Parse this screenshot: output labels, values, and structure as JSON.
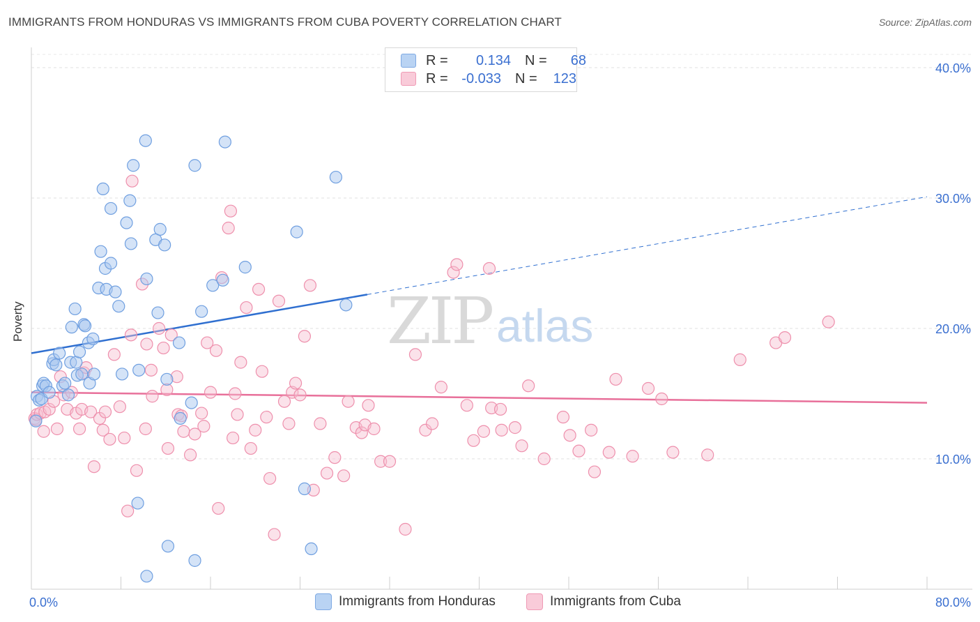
{
  "header": {
    "title": "IMMIGRANTS FROM HONDURAS VS IMMIGRANTS FROM CUBA POVERTY CORRELATION CHART",
    "source": "Source: ZipAtlas.com"
  },
  "legend_top": {
    "row1": {
      "r_label": "R =",
      "r_value": "0.134",
      "n_label": "N =",
      "n_value": "68"
    },
    "row2": {
      "r_label": "R =",
      "r_value": "-0.033",
      "n_label": "N =",
      "n_value": "123"
    }
  },
  "legend_bottom": {
    "item1": "Immigrants from Honduras",
    "item2": "Immigrants from Cuba"
  },
  "colors": {
    "honduras_fill": "#a9c8f0",
    "honduras_stroke": "#6f9fe0",
    "honduras_line": "#2f6fd0",
    "cuba_fill": "#f7bfd0",
    "cuba_stroke": "#ee8fac",
    "cuba_line": "#e8709a",
    "tick_label": "#3a6fd0"
  },
  "chart_data": {
    "type": "scatter",
    "title": "IMMIGRANTS FROM HONDURAS VS IMMIGRANTS FROM CUBA POVERTY CORRELATION CHART",
    "xlabel": "",
    "ylabel": "Poverty",
    "xlim": [
      0,
      80
    ],
    "ylim": [
      0,
      40
    ],
    "x_tick_labels": [
      "0.0%",
      "80.0%"
    ],
    "y_ticks": [
      10,
      20,
      30,
      40
    ],
    "y_tick_labels": [
      "10.0%",
      "20.0%",
      "30.0%",
      "40.0%"
    ],
    "grid": true,
    "legend_position": "top-center",
    "watermark": "ZIPatlas",
    "series": [
      {
        "name": "Immigrants from Honduras",
        "R": 0.134,
        "N": 68,
        "trend": {
          "x0": 0,
          "y0": 18.1,
          "x1": 30,
          "y1": 22.6,
          "dashed_to_x": 80,
          "dashed_to_y": 30.1
        },
        "points": [
          [
            0.5,
            14.8
          ],
          [
            0.7,
            14.5
          ],
          [
            0.9,
            14.6
          ],
          [
            1.0,
            15.6
          ],
          [
            1.1,
            15.8
          ],
          [
            1.3,
            15.6
          ],
          [
            1.6,
            15.1
          ],
          [
            1.9,
            17.3
          ],
          [
            2.0,
            17.6
          ],
          [
            2.5,
            18.1
          ],
          [
            2.8,
            15.6
          ],
          [
            3.0,
            15.8
          ],
          [
            3.3,
            14.9
          ],
          [
            3.5,
            17.4
          ],
          [
            3.6,
            20.1
          ],
          [
            3.9,
            21.5
          ],
          [
            4.0,
            17.4
          ],
          [
            4.1,
            16.4
          ],
          [
            4.3,
            18.2
          ],
          [
            4.7,
            20.3
          ],
          [
            4.8,
            20.2
          ],
          [
            5.1,
            18.9
          ],
          [
            5.2,
            15.8
          ],
          [
            5.5,
            19.2
          ],
          [
            5.6,
            16.5
          ],
          [
            6.0,
            23.1
          ],
          [
            6.2,
            25.9
          ],
          [
            6.4,
            30.7
          ],
          [
            6.6,
            24.6
          ],
          [
            6.7,
            23.0
          ],
          [
            7.1,
            25.0
          ],
          [
            7.5,
            22.8
          ],
          [
            7.8,
            21.7
          ],
          [
            8.1,
            16.5
          ],
          [
            8.5,
            28.1
          ],
          [
            8.8,
            29.8
          ],
          [
            8.9,
            26.5
          ],
          [
            9.1,
            32.5
          ],
          [
            9.6,
            16.8
          ],
          [
            10.2,
            34.4
          ],
          [
            10.3,
            23.8
          ],
          [
            11.1,
            26.8
          ],
          [
            11.3,
            21.2
          ],
          [
            11.5,
            27.6
          ],
          [
            11.9,
            26.4
          ],
          [
            12.1,
            16.1
          ],
          [
            13.2,
            18.9
          ],
          [
            13.3,
            13.1
          ],
          [
            14.3,
            14.3
          ],
          [
            14.6,
            32.5
          ],
          [
            15.2,
            21.3
          ],
          [
            16.2,
            23.3
          ],
          [
            17.1,
            23.7
          ],
          [
            17.3,
            34.3
          ],
          [
            19.1,
            24.7
          ],
          [
            23.7,
            27.4
          ],
          [
            24.4,
            7.7
          ],
          [
            25.0,
            3.1
          ],
          [
            27.2,
            31.6
          ],
          [
            28.1,
            21.8
          ],
          [
            10.3,
            1.0
          ],
          [
            12.2,
            3.3
          ],
          [
            14.6,
            2.2
          ],
          [
            9.5,
            6.6
          ],
          [
            7.1,
            29.2
          ],
          [
            2.2,
            17.2
          ],
          [
            0.4,
            12.9
          ],
          [
            4.5,
            16.5
          ]
        ]
      },
      {
        "name": "Immigrants from Cuba",
        "R": -0.033,
        "N": 123,
        "trend": {
          "x0": 0,
          "y0": 15.1,
          "x1": 80,
          "y1": 14.3
        },
        "points": [
          [
            0.3,
            13.1
          ],
          [
            0.4,
            13.0
          ],
          [
            0.5,
            13.4
          ],
          [
            0.8,
            13.5
          ],
          [
            1.1,
            12.1
          ],
          [
            1.2,
            13.6
          ],
          [
            1.6,
            13.8
          ],
          [
            2.0,
            14.4
          ],
          [
            2.3,
            12.3
          ],
          [
            2.6,
            16.3
          ],
          [
            2.9,
            14.9
          ],
          [
            3.2,
            13.8
          ],
          [
            3.6,
            15.1
          ],
          [
            4.0,
            13.5
          ],
          [
            4.3,
            12.3
          ],
          [
            4.5,
            13.8
          ],
          [
            4.7,
            16.6
          ],
          [
            4.9,
            17.0
          ],
          [
            5.3,
            13.6
          ],
          [
            5.6,
            9.4
          ],
          [
            6.1,
            13.1
          ],
          [
            6.4,
            12.2
          ],
          [
            6.6,
            13.6
          ],
          [
            7.0,
            11.5
          ],
          [
            7.4,
            18.0
          ],
          [
            7.9,
            14.0
          ],
          [
            8.3,
            11.6
          ],
          [
            8.6,
            6.0
          ],
          [
            8.9,
            19.5
          ],
          [
            9.0,
            31.3
          ],
          [
            9.4,
            9.1
          ],
          [
            9.9,
            23.4
          ],
          [
            10.2,
            12.3
          ],
          [
            10.3,
            18.8
          ],
          [
            10.7,
            16.8
          ],
          [
            10.8,
            14.8
          ],
          [
            11.4,
            20.0
          ],
          [
            11.8,
            18.5
          ],
          [
            12.1,
            15.3
          ],
          [
            12.2,
            10.8
          ],
          [
            12.5,
            19.5
          ],
          [
            13.0,
            16.3
          ],
          [
            13.1,
            13.4
          ],
          [
            13.4,
            13.3
          ],
          [
            13.6,
            12.1
          ],
          [
            14.2,
            10.3
          ],
          [
            14.6,
            11.9
          ],
          [
            15.2,
            13.5
          ],
          [
            15.4,
            12.5
          ],
          [
            15.7,
            18.9
          ],
          [
            16.0,
            15.1
          ],
          [
            16.5,
            18.3
          ],
          [
            16.7,
            6.2
          ],
          [
            17.0,
            23.9
          ],
          [
            17.6,
            27.7
          ],
          [
            17.8,
            29.0
          ],
          [
            18.0,
            11.6
          ],
          [
            18.2,
            15.0
          ],
          [
            18.4,
            13.4
          ],
          [
            18.7,
            17.4
          ],
          [
            19.2,
            21.6
          ],
          [
            19.6,
            10.8
          ],
          [
            20.0,
            12.2
          ],
          [
            20.3,
            23.0
          ],
          [
            20.6,
            16.7
          ],
          [
            21.0,
            13.2
          ],
          [
            21.3,
            8.5
          ],
          [
            21.7,
            4.2
          ],
          [
            22.1,
            22.1
          ],
          [
            22.6,
            14.4
          ],
          [
            23.0,
            12.7
          ],
          [
            23.3,
            15.1
          ],
          [
            23.6,
            15.8
          ],
          [
            24.4,
            19.4
          ],
          [
            24.9,
            23.3
          ],
          [
            25.2,
            7.6
          ],
          [
            25.8,
            12.7
          ],
          [
            26.4,
            8.9
          ],
          [
            27.1,
            10.1
          ],
          [
            27.9,
            8.7
          ],
          [
            28.3,
            14.4
          ],
          [
            29.0,
            12.4
          ],
          [
            29.5,
            12.0
          ],
          [
            29.8,
            12.6
          ],
          [
            30.1,
            14.1
          ],
          [
            30.6,
            12.3
          ],
          [
            31.2,
            9.8
          ],
          [
            33.4,
            4.6
          ],
          [
            34.3,
            18.0
          ],
          [
            35.2,
            12.2
          ],
          [
            35.8,
            12.7
          ],
          [
            36.6,
            15.5
          ],
          [
            37.7,
            24.3
          ],
          [
            38.0,
            24.9
          ],
          [
            38.9,
            14.1
          ],
          [
            39.5,
            11.4
          ],
          [
            40.4,
            12.1
          ],
          [
            40.9,
            24.6
          ],
          [
            41.1,
            13.9
          ],
          [
            41.9,
            13.8
          ],
          [
            43.2,
            12.4
          ],
          [
            43.8,
            11.0
          ],
          [
            44.4,
            15.6
          ],
          [
            45.8,
            10.0
          ],
          [
            47.5,
            13.2
          ],
          [
            48.1,
            11.8
          ],
          [
            48.9,
            10.6
          ],
          [
            50.0,
            12.2
          ],
          [
            50.3,
            9.0
          ],
          [
            51.6,
            10.5
          ],
          [
            52.2,
            16.1
          ],
          [
            53.7,
            10.2
          ],
          [
            55.1,
            15.4
          ],
          [
            56.3,
            14.6
          ],
          [
            57.3,
            10.5
          ],
          [
            60.4,
            10.3
          ],
          [
            63.3,
            17.6
          ],
          [
            66.5,
            18.9
          ],
          [
            67.3,
            19.3
          ],
          [
            71.2,
            20.5
          ],
          [
            24.0,
            14.9
          ],
          [
            32.0,
            9.8
          ],
          [
            42.0,
            12.2
          ]
        ]
      }
    ]
  }
}
